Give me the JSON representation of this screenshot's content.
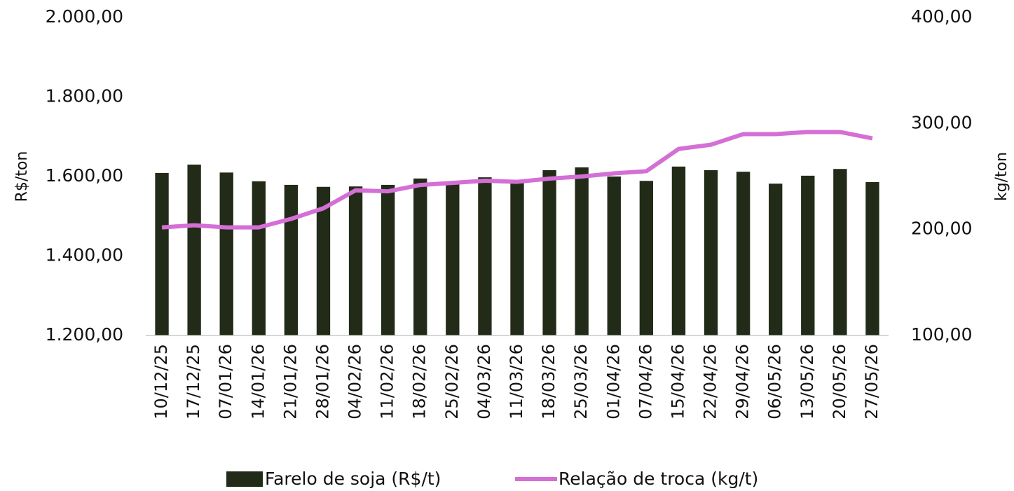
{
  "chart_data": {
    "type": "bar_line",
    "y_label": "R$/ton",
    "y2_label": "kg/ton",
    "categories": [
      "10/12/25",
      "17/12/25",
      "07/01/26",
      "14/01/26",
      "21/01/26",
      "28/01/26",
      "04/02/26",
      "11/02/26",
      "18/02/26",
      "25/02/26",
      "04/03/26",
      "11/03/26",
      "18/03/26",
      "25/03/26",
      "01/04/26",
      "07/04/26",
      "15/04/26",
      "22/04/26",
      "29/04/26",
      "06/05/26",
      "13/05/26",
      "20/05/26",
      "27/05/26"
    ],
    "series": [
      {
        "name": "Farelo de soja (R$/t)",
        "color": "#222b17",
        "type": "bar",
        "values": [
          1609,
          1630,
          1610,
          1588,
          1579,
          1574,
          1575,
          1579,
          1595,
          1584,
          1598,
          1586,
          1616,
          1623,
          1600,
          1589,
          1625,
          1616,
          1612,
          1582,
          1602,
          1619,
          1586
        ]
      },
      {
        "name": "Relação de troca (kg/t)",
        "color": "#d46fd6",
        "type": "line",
        "axis": "y2",
        "values": [
          202,
          204,
          202,
          202,
          210,
          220,
          237,
          236,
          242,
          244,
          246,
          245,
          248,
          250,
          253,
          255,
          276,
          280,
          290,
          290,
          292,
          292,
          286
        ]
      }
    ],
    "ylim": [
      1200,
      2000
    ],
    "yticks": [
      {
        "value": 1200,
        "label": "1.200,00"
      },
      {
        "value": 1400,
        "label": "1.400,00"
      },
      {
        "value": 1600,
        "label": "1.600,00"
      },
      {
        "value": 1800,
        "label": "1.800,00"
      },
      {
        "value": 2000,
        "label": "2.000,00"
      }
    ],
    "y2lim": [
      100,
      400
    ],
    "y2ticks": [
      {
        "value": 100,
        "label": "100,00"
      },
      {
        "value": 200,
        "label": "200,00"
      },
      {
        "value": 300,
        "label": "300,00"
      },
      {
        "value": 400,
        "label": "400,00"
      }
    ],
    "legend": "bottom"
  }
}
